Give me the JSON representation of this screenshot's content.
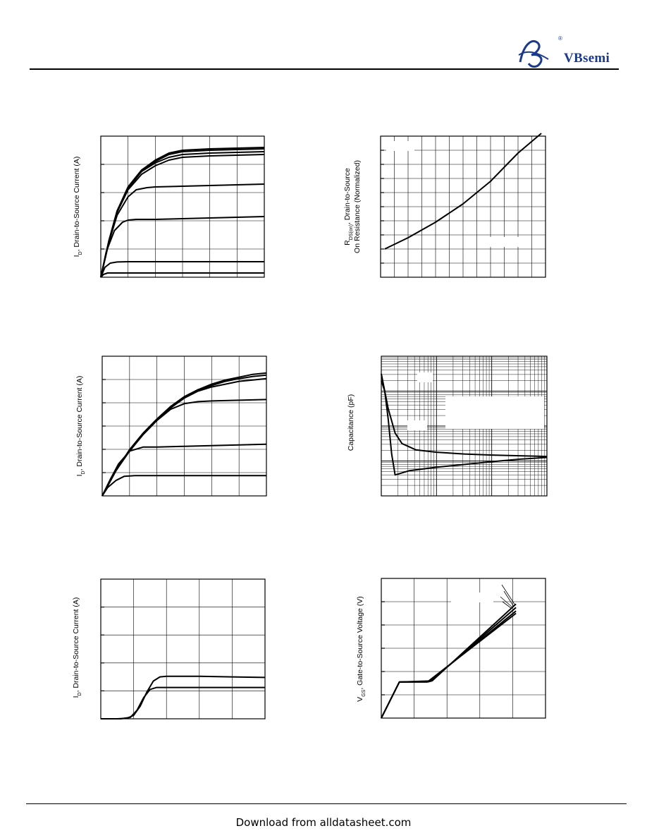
{
  "header": {
    "logo_text": "VBsemi",
    "logo_mark": "®"
  },
  "footer": {
    "text": "Download from alldatasheet.com"
  },
  "chart_data": [
    {
      "id": "output-characteristics-1",
      "type": "line",
      "ylabel_main": "I",
      "ylabel_sub": "D",
      "ylabel_rest": ", Drain-to-Source Current (A)",
      "xlim": [
        0,
        6
      ],
      "ylim": [
        0,
        10
      ],
      "grid_x": 6,
      "grid_y": 5,
      "series": [
        {
          "x": [
            0,
            0.3,
            0.6,
            1,
            1.5,
            2,
            2.5,
            3,
            4,
            5,
            6
          ],
          "y": [
            0,
            2.6,
            4.7,
            6.4,
            7.6,
            8.3,
            8.8,
            9.0,
            9.1,
            9.15,
            9.2
          ]
        },
        {
          "x": [
            0,
            0.3,
            0.6,
            1,
            1.5,
            2,
            2.5,
            3,
            4,
            5,
            6
          ],
          "y": [
            0,
            2.6,
            4.7,
            6.4,
            7.6,
            8.2,
            8.7,
            8.9,
            9.0,
            9.05,
            9.1
          ]
        },
        {
          "x": [
            0,
            0.3,
            0.6,
            1,
            1.5,
            2,
            2.5,
            3,
            4,
            5,
            6
          ],
          "y": [
            0,
            2.6,
            4.7,
            6.3,
            7.5,
            8.1,
            8.5,
            8.7,
            8.8,
            8.85,
            8.9
          ]
        },
        {
          "x": [
            0,
            0.3,
            0.6,
            1,
            1.5,
            2,
            2.5,
            3,
            4,
            5,
            6
          ],
          "y": [
            0,
            2.5,
            4.6,
            6.2,
            7.3,
            7.9,
            8.3,
            8.5,
            8.6,
            8.65,
            8.7
          ]
        },
        {
          "x": [
            0,
            0.3,
            0.6,
            1,
            1.3,
            1.7,
            2,
            3,
            4,
            5,
            6
          ],
          "y": [
            0,
            2.5,
            4.4,
            5.7,
            6.2,
            6.35,
            6.4,
            6.45,
            6.5,
            6.55,
            6.6
          ]
        },
        {
          "x": [
            0,
            0.2,
            0.5,
            0.8,
            1,
            1.3,
            2,
            3,
            4,
            5,
            6
          ],
          "y": [
            0,
            1.8,
            3.3,
            3.9,
            4.05,
            4.1,
            4.1,
            4.15,
            4.2,
            4.25,
            4.3
          ]
        },
        {
          "x": [
            0,
            0.15,
            0.35,
            0.6,
            1,
            2,
            3,
            4,
            5,
            6
          ],
          "y": [
            0,
            0.7,
            1.0,
            1.08,
            1.1,
            1.1,
            1.1,
            1.1,
            1.1,
            1.1
          ]
        },
        {
          "x": [
            0,
            0.1,
            0.25,
            0.5,
            1,
            2,
            3,
            4,
            5,
            6
          ],
          "y": [
            0,
            0.2,
            0.3,
            0.3,
            0.3,
            0.3,
            0.3,
            0.3,
            0.3,
            0.3
          ]
        }
      ]
    },
    {
      "id": "rdson-vs-temperature",
      "type": "line",
      "ylabel_main": "R",
      "ylabel_sub": "DS(on)",
      "ylabel_rest": ", Drain-to-Source",
      "ylabel_line2": "On Resistance (Normalized)",
      "xlim": [
        0,
        12
      ],
      "ylim": [
        0,
        10
      ],
      "grid_x": 12,
      "grid_y": 10,
      "series": [
        {
          "x": [
            0.3,
            2,
            4,
            6,
            8,
            10,
            11.7
          ],
          "y": [
            2.0,
            2.8,
            3.9,
            5.2,
            6.8,
            8.8,
            10.2
          ]
        }
      ]
    },
    {
      "id": "output-characteristics-2",
      "type": "line",
      "ylabel_main": "I",
      "ylabel_sub": "D",
      "ylabel_rest": ", Drain-to-Source Current (A)",
      "xlim": [
        0,
        6
      ],
      "ylim": [
        0,
        10
      ],
      "grid_x": 6,
      "grid_y": 6,
      "series": [
        {
          "x": [
            0,
            0.5,
            1,
            1.5,
            2,
            2.5,
            3,
            3.5,
            4,
            4.5,
            5,
            5.5,
            6
          ],
          "y": [
            0,
            1.8,
            3.3,
            4.5,
            5.5,
            6.4,
            7.1,
            7.6,
            8.0,
            8.3,
            8.5,
            8.7,
            8.8
          ]
        },
        {
          "x": [
            0,
            0.5,
            1,
            1.5,
            2,
            2.5,
            3,
            3.5,
            4,
            4.5,
            5,
            5.5,
            6
          ],
          "y": [
            0,
            1.8,
            3.3,
            4.5,
            5.5,
            6.4,
            7.1,
            7.6,
            7.9,
            8.2,
            8.4,
            8.55,
            8.65
          ]
        },
        {
          "x": [
            0,
            0.5,
            1,
            1.5,
            2,
            2.5,
            3,
            3.5,
            4,
            4.5,
            5,
            5.5,
            6
          ],
          "y": [
            0,
            1.8,
            3.3,
            4.5,
            5.5,
            6.3,
            7.0,
            7.5,
            7.8,
            8.0,
            8.2,
            8.3,
            8.4
          ]
        },
        {
          "x": [
            0,
            0.5,
            1,
            1.5,
            2,
            2.5,
            3,
            3.5,
            4,
            5,
            6
          ],
          "y": [
            0,
            1.8,
            3.2,
            4.4,
            5.4,
            6.2,
            6.6,
            6.75,
            6.8,
            6.85,
            6.9
          ]
        },
        {
          "x": [
            0,
            0.3,
            0.6,
            1,
            1.5,
            2,
            3,
            4,
            5,
            6
          ],
          "y": [
            0,
            1.2,
            2.3,
            3.2,
            3.5,
            3.5,
            3.55,
            3.6,
            3.65,
            3.7
          ]
        },
        {
          "x": [
            0,
            0.2,
            0.5,
            0.8,
            1.2,
            2,
            3,
            4,
            5,
            6
          ],
          "y": [
            0,
            0.6,
            1.1,
            1.4,
            1.45,
            1.45,
            1.45,
            1.45,
            1.45,
            1.45
          ]
        }
      ]
    },
    {
      "id": "capacitance-vs-voltage",
      "type": "line",
      "ylabel": "Capacitance (pF)",
      "xlim": [
        0,
        24
      ],
      "ylim": [
        0,
        4
      ],
      "xscale": "log-grid",
      "yscale": "log",
      "series": [
        {
          "x": [
            0,
            0.5,
            1,
            2,
            3,
            5,
            8,
            12,
            16,
            20,
            24
          ],
          "y": [
            3.5,
            3.0,
            2.5,
            1.8,
            1.5,
            1.32,
            1.25,
            1.2,
            1.17,
            1.15,
            1.13
          ]
        },
        {
          "x": [
            0,
            0.5,
            1,
            1.5,
            2,
            4,
            8,
            12,
            16,
            20,
            24
          ],
          "y": [
            3.3,
            3.0,
            2.2,
            1.2,
            0.6,
            0.72,
            0.82,
            0.9,
            0.98,
            1.05,
            1.1
          ]
        }
      ]
    },
    {
      "id": "transfer-characteristics",
      "type": "line",
      "ylabel_main": "I",
      "ylabel_sub": "D",
      "ylabel_rest": ", Drain-to-Source Current (A)",
      "xlim": [
        0,
        5
      ],
      "ylim": [
        0,
        5
      ],
      "grid_x": 5,
      "grid_y": 5,
      "series": [
        {
          "x": [
            0,
            0.5,
            0.8,
            1,
            1.2,
            1.4,
            1.6,
            1.8,
            2,
            3,
            4,
            5
          ],
          "y": [
            0,
            0,
            0.02,
            0.12,
            0.45,
            0.95,
            1.35,
            1.5,
            1.52,
            1.52,
            1.5,
            1.48
          ]
        },
        {
          "x": [
            0,
            0.6,
            0.9,
            1.1,
            1.3,
            1.5,
            1.7,
            2,
            3,
            4,
            5
          ],
          "y": [
            0,
            0,
            0.05,
            0.3,
            0.75,
            1.05,
            1.12,
            1.12,
            1.12,
            1.12,
            1.12
          ]
        }
      ]
    },
    {
      "id": "gate-charge",
      "type": "line",
      "ylabel_main": "V",
      "ylabel_sub": "GS",
      "ylabel_rest": ", Gate-to-Source Voltage (V)",
      "xlim": [
        0,
        5
      ],
      "ylim": [
        0,
        6
      ],
      "grid_x": 5,
      "grid_y": 6,
      "series": [
        {
          "x": [
            0,
            0.55,
            1.55,
            4.1
          ],
          "y": [
            0,
            1.55,
            1.6,
            4.9
          ]
        },
        {
          "x": [
            0,
            0.55,
            1.5,
            4.1
          ],
          "y": [
            0,
            1.55,
            1.58,
            4.75
          ]
        },
        {
          "x": [
            0,
            0.55,
            1.45,
            4.1
          ],
          "y": [
            0,
            1.55,
            1.56,
            4.6
          ]
        },
        {
          "x": [
            0,
            0.55,
            1.4,
            4.1
          ],
          "y": [
            0,
            1.55,
            1.55,
            4.5
          ]
        }
      ]
    }
  ]
}
